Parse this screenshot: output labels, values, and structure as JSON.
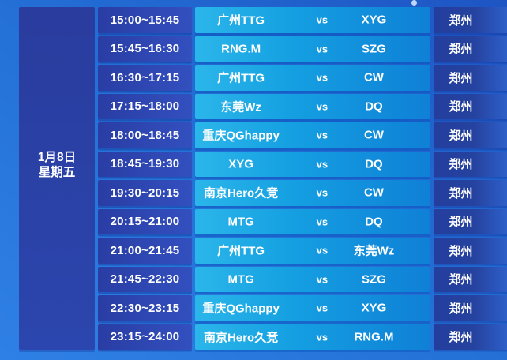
{
  "date": {
    "day": "1月8日",
    "weekday": "星期五"
  },
  "vs_label": "vs",
  "rows": [
    {
      "time": "15:00~15:45",
      "team1": "广州TTG",
      "team2": "XYG",
      "location": "郑州"
    },
    {
      "time": "15:45~16:30",
      "team1": "RNG.M",
      "team2": "SZG",
      "location": "郑州"
    },
    {
      "time": "16:30~17:15",
      "team1": "广州TTG",
      "team2": "CW",
      "location": "郑州"
    },
    {
      "time": "17:15~18:00",
      "team1": "东莞Wz",
      "team2": "DQ",
      "location": "郑州"
    },
    {
      "time": "18:00~18:45",
      "team1": "重庆QGhappy",
      "team2": "CW",
      "location": "郑州"
    },
    {
      "time": "18:45~19:30",
      "team1": "XYG",
      "team2": "DQ",
      "location": "郑州"
    },
    {
      "time": "19:30~20:15",
      "team1": "南京Hero久竞",
      "team2": "CW",
      "location": "郑州"
    },
    {
      "time": "20:15~21:00",
      "team1": "MTG",
      "team2": "DQ",
      "location": "郑州"
    },
    {
      "time": "21:00~21:45",
      "team1": "广州TTG",
      "team2": "东莞Wz",
      "location": "郑州"
    },
    {
      "time": "21:45~22:30",
      "team1": "MTG",
      "team2": "SZG",
      "location": "郑州"
    },
    {
      "time": "22:30~23:15",
      "team1": "重庆QGhappy",
      "team2": "XYG",
      "location": "郑州"
    },
    {
      "time": "23:15~24:00",
      "team1": "南京Hero久竞",
      "team2": "RNG.M",
      "location": "郑州"
    }
  ],
  "colors": {
    "background_bottom_left": "#2f80e6",
    "background_top_right": "#1e55c4",
    "panel_dark_blue": "#2a3ea6",
    "time_cell_blue": "#2c43ab",
    "match_cyan_left": "#2bb6ea",
    "match_blue_right": "#0f80d6",
    "location_cell_blue": "#26429f",
    "text": "#ffffff"
  }
}
